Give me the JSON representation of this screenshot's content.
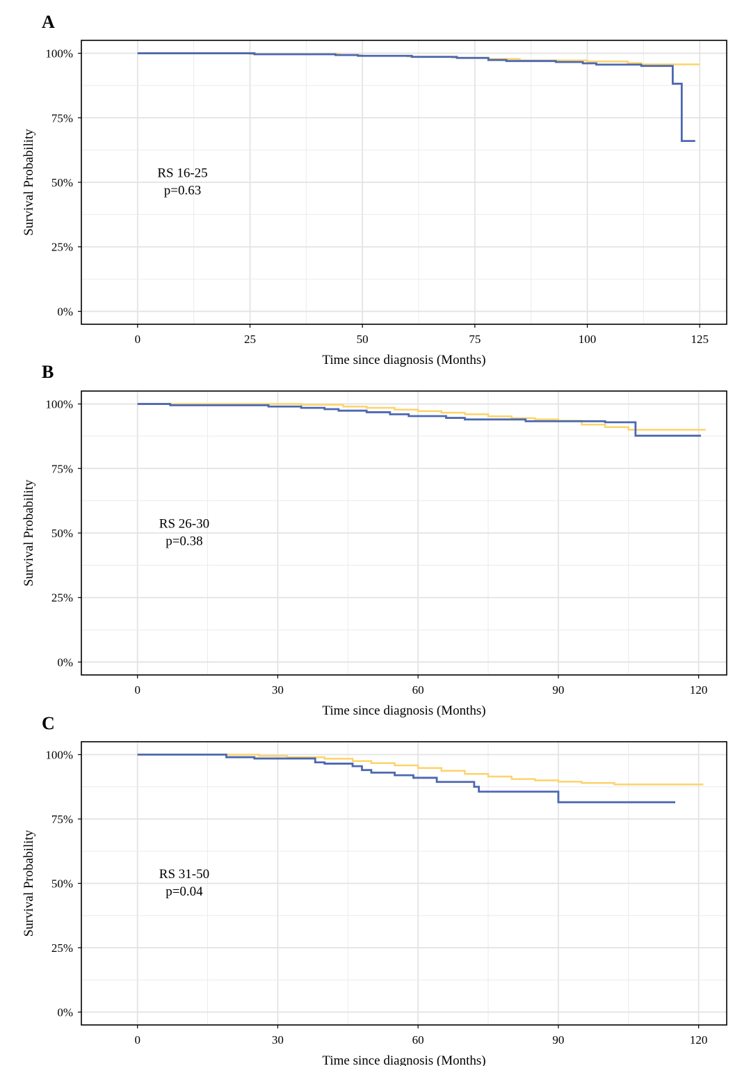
{
  "chart_data": [
    {
      "panel": "A",
      "type": "line",
      "step": true,
      "xlabel": "Time since diagnosis (Months)",
      "ylabel": "Survival Probability",
      "xlim": [
        -12.5,
        131
      ],
      "ylim": [
        -0.05,
        1.05
      ],
      "xticks": [
        0,
        25,
        50,
        75,
        100,
        125
      ],
      "yticks": [
        0,
        0.25,
        0.5,
        0.75,
        1.0
      ],
      "ytick_labels": [
        "0%",
        "25%",
        "50%",
        "75%",
        "100%"
      ],
      "grid": true,
      "annotation": [
        "RS 16-25",
        "p=0.63"
      ],
      "annotation_pos": [
        10,
        0.52
      ],
      "series": [
        {
          "color": "#FDD36A",
          "x": [
            0,
            25,
            45,
            50,
            60,
            70,
            78,
            85,
            100,
            109,
            112,
            125
          ],
          "y": [
            1.0,
            0.997,
            0.993,
            0.99,
            0.987,
            0.983,
            0.978,
            0.972,
            0.968,
            0.962,
            0.957,
            0.957
          ]
        },
        {
          "color": "#4C68B0",
          "x": [
            0,
            26,
            44,
            49,
            61,
            71,
            78,
            82,
            93,
            99,
            102,
            112,
            119,
            121,
            124
          ],
          "y": [
            1.0,
            0.996,
            0.993,
            0.99,
            0.986,
            0.982,
            0.974,
            0.97,
            0.966,
            0.961,
            0.956,
            0.951,
            0.882,
            0.66,
            0.66
          ]
        }
      ]
    },
    {
      "panel": "B",
      "type": "line",
      "step": true,
      "xlabel": "Time since diagnosis (Months)",
      "ylabel": "Survival Probability",
      "xlim": [
        -12,
        126
      ],
      "ylim": [
        -0.05,
        1.05
      ],
      "xticks": [
        0,
        30,
        60,
        90,
        120
      ],
      "yticks": [
        0,
        0.25,
        0.5,
        0.75,
        1.0
      ],
      "ytick_labels": [
        "0%",
        "25%",
        "50%",
        "75%",
        "100%"
      ],
      "grid": true,
      "annotation": [
        "RS 26-30",
        "p=0.38"
      ],
      "annotation_pos": [
        10,
        0.52
      ],
      "series": [
        {
          "color": "#FDD36A",
          "x": [
            0,
            7,
            35,
            44,
            49,
            55,
            60,
            65,
            70,
            75,
            80,
            85,
            90,
            95,
            100,
            105,
            121.5
          ],
          "y": [
            1.0,
            1.0,
            0.997,
            0.99,
            0.985,
            0.978,
            0.972,
            0.966,
            0.96,
            0.952,
            0.945,
            0.94,
            0.935,
            0.92,
            0.91,
            0.9,
            0.9
          ]
        },
        {
          "color": "#4C68B0",
          "x": [
            0,
            7,
            28,
            35,
            40,
            43,
            49,
            54,
            58,
            66,
            70,
            83,
            100,
            106.5,
            120.5
          ],
          "y": [
            1.0,
            0.995,
            0.99,
            0.985,
            0.98,
            0.974,
            0.968,
            0.96,
            0.953,
            0.946,
            0.94,
            0.933,
            0.929,
            0.877,
            0.877
          ]
        }
      ]
    },
    {
      "panel": "C",
      "type": "line",
      "step": true,
      "xlabel": "Time since diagnosis (Months)",
      "ylabel": "Survival Probability",
      "xlim": [
        -12,
        126
      ],
      "ylim": [
        -0.05,
        1.05
      ],
      "xticks": [
        0,
        30,
        60,
        90,
        120
      ],
      "yticks": [
        0,
        0.25,
        0.5,
        0.75,
        1.0
      ],
      "ytick_labels": [
        "0%",
        "25%",
        "50%",
        "75%",
        "100%"
      ],
      "grid": true,
      "annotation": [
        "RS 31-50",
        "p=0.04"
      ],
      "annotation_pos": [
        10,
        0.52
      ],
      "series": [
        {
          "color": "#FDD36A",
          "x": [
            0,
            19,
            26,
            32,
            40,
            46,
            50,
            55,
            60,
            65,
            70,
            75,
            80,
            85,
            90,
            95,
            102,
            121
          ],
          "y": [
            1.0,
            1.0,
            0.995,
            0.99,
            0.984,
            0.975,
            0.967,
            0.958,
            0.948,
            0.937,
            0.925,
            0.915,
            0.905,
            0.9,
            0.895,
            0.89,
            0.884,
            0.884
          ]
        },
        {
          "color": "#4C68B0",
          "x": [
            0,
            19,
            25,
            38,
            40,
            46,
            48,
            50,
            55,
            59,
            64,
            72,
            73,
            90,
            115
          ],
          "y": [
            1.0,
            0.99,
            0.985,
            0.97,
            0.965,
            0.955,
            0.94,
            0.93,
            0.92,
            0.91,
            0.894,
            0.875,
            0.856,
            0.815,
            0.815
          ]
        }
      ]
    }
  ]
}
